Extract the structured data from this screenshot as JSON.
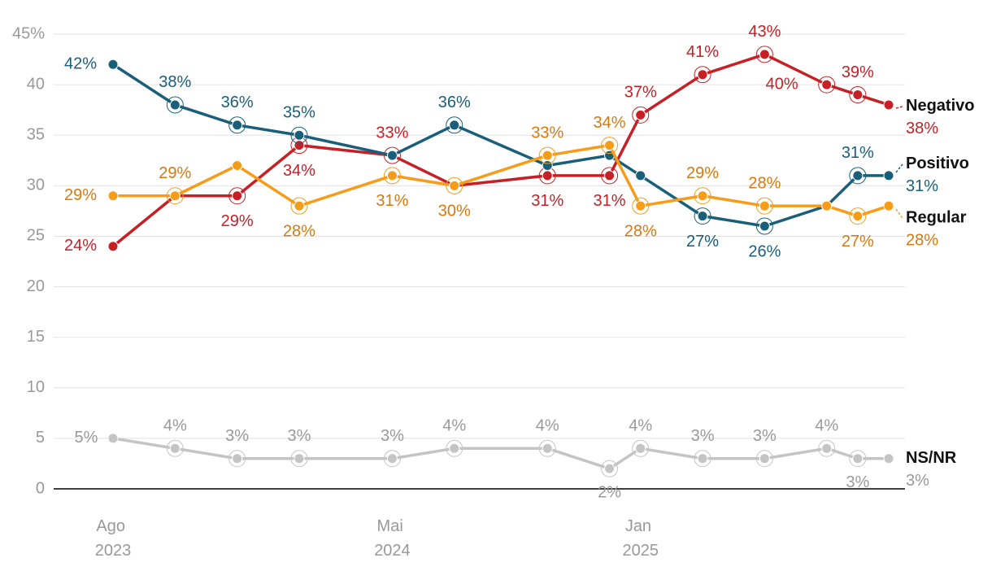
{
  "chart_data": {
    "type": "line",
    "x": [
      "2023-08",
      "2023-10",
      "2023-12",
      "2024-02",
      "2024-05",
      "2024-07",
      "2024-10",
      "2024-12",
      "2025-01",
      "2025-03",
      "2025-05",
      "2025-07",
      "2025-08",
      "2025-09"
    ],
    "xlim": [
      "2023-08",
      "2025-09"
    ],
    "xticks": [
      {
        "value": "2023-08",
        "label": "Ago 2023"
      },
      {
        "value": "2024-05",
        "label": "Mai 2024"
      },
      {
        "value": "2025-01",
        "label": "Jan 2025"
      }
    ],
    "ylim": [
      0,
      45
    ],
    "yticks": [
      0,
      5,
      10,
      15,
      20,
      25,
      30,
      35,
      40,
      {
        "value": 45,
        "label": "45%"
      }
    ],
    "grid": true,
    "series": [
      {
        "name": "Negativo",
        "color": "#c62026",
        "values": [
          24,
          29,
          29,
          34,
          33,
          30,
          31,
          31,
          37,
          41,
          43,
          40,
          39,
          38
        ],
        "value_labels": [
          "24%",
          null,
          "29%",
          "34%",
          "33%",
          null,
          "31%",
          "31%",
          "37%",
          "41%",
          "43%",
          "40%",
          "39%",
          "38%"
        ]
      },
      {
        "name": "Positivo",
        "color": "#1a5f7a",
        "values": [
          42,
          38,
          36,
          35,
          33,
          36,
          32,
          33,
          31,
          27,
          26,
          28,
          31,
          31
        ],
        "value_labels": [
          "42%",
          "38%",
          "36%",
          "35%",
          null,
          "36%",
          null,
          null,
          null,
          "27%",
          "26%",
          null,
          "31%",
          "31%"
        ]
      },
      {
        "name": "Regular",
        "color": "#f59c1a",
        "values": [
          29,
          29,
          32,
          28,
          31,
          30,
          33,
          34,
          28,
          29,
          28,
          28,
          27,
          28
        ],
        "value_labels": [
          "29%",
          "29%",
          null,
          "28%",
          "31%",
          "30%",
          "33%",
          "34%",
          "28%",
          "29%",
          "28%",
          null,
          "27%",
          "28%"
        ]
      },
      {
        "name": "NS/NR",
        "color": "#c4c4c4",
        "values": [
          5,
          4,
          3,
          3,
          3,
          4,
          4,
          2,
          4,
          3,
          3,
          4,
          3,
          3
        ],
        "value_labels": [
          "5%",
          "4%",
          "3%",
          "3%",
          "3%",
          "4%",
          "4%",
          "2%",
          "4%",
          "3%",
          "3%",
          "4%",
          "3%",
          "3%"
        ]
      }
    ]
  }
}
